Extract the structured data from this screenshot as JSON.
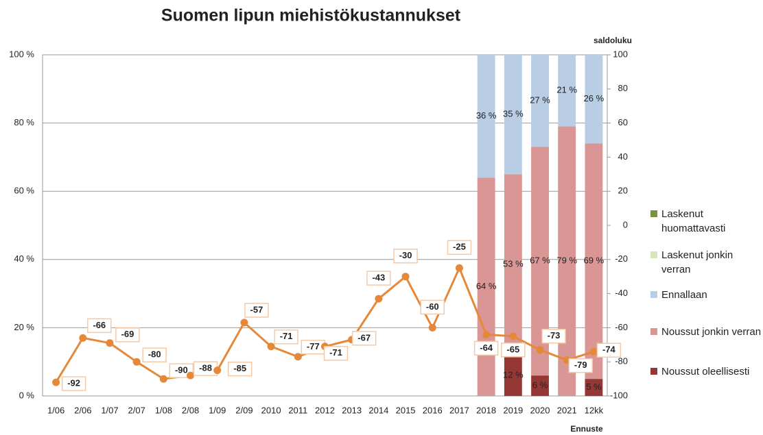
{
  "chart_data": {
    "type": "bar",
    "title": "Suomen lipun miehistökustannukset",
    "y2_label": "saldoluku",
    "annotation": "Ennuste",
    "categories": [
      "1/06",
      "2/06",
      "1/07",
      "2/07",
      "1/08",
      "2/08",
      "1/09",
      "2/09",
      "2010",
      "2011",
      "2012",
      "2013",
      "2014",
      "2015",
      "2016",
      "2017",
      "2018",
      "2019",
      "2020",
      "2021",
      "12kk"
    ],
    "stacked": true,
    "series": [
      {
        "name": "Noussut oleellisesti",
        "color": "#953735",
        "values": [
          null,
          null,
          null,
          null,
          null,
          null,
          null,
          null,
          null,
          null,
          null,
          null,
          null,
          null,
          null,
          null,
          null,
          12,
          6,
          null,
          5
        ],
        "value_labels": [
          null,
          null,
          null,
          null,
          null,
          null,
          null,
          null,
          null,
          null,
          null,
          null,
          null,
          null,
          null,
          null,
          null,
          "12 %",
          "6 %",
          null,
          "5 %"
        ]
      },
      {
        "name": "Noussut jonkin verran",
        "color": "#d99694",
        "values": [
          null,
          null,
          null,
          null,
          null,
          null,
          null,
          null,
          null,
          null,
          null,
          null,
          null,
          null,
          null,
          null,
          64,
          53,
          67,
          79,
          69
        ],
        "value_labels": [
          null,
          null,
          null,
          null,
          null,
          null,
          null,
          null,
          null,
          null,
          null,
          null,
          null,
          null,
          null,
          null,
          "64 %",
          "53 %",
          "67 %",
          "79 %",
          "69 %"
        ]
      },
      {
        "name": "Ennallaan",
        "color": "#b9cde5",
        "values": [
          null,
          null,
          null,
          null,
          null,
          null,
          null,
          null,
          null,
          null,
          null,
          null,
          null,
          null,
          null,
          null,
          36,
          35,
          27,
          21,
          26
        ],
        "value_labels": [
          null,
          null,
          null,
          null,
          null,
          null,
          null,
          null,
          null,
          null,
          null,
          null,
          null,
          null,
          null,
          null,
          "36 %",
          "35 %",
          "27 %",
          "21 %",
          "26 %"
        ]
      },
      {
        "name": "Laskenut jonkin verran",
        "color": "#d7e4bd",
        "values": [
          null,
          null,
          null,
          null,
          null,
          null,
          null,
          null,
          null,
          null,
          null,
          null,
          null,
          null,
          null,
          null,
          null,
          null,
          null,
          null,
          null
        ]
      },
      {
        "name": "Laskenut huomattavasti",
        "color": "#77933c",
        "values": [
          null,
          null,
          null,
          null,
          null,
          null,
          null,
          null,
          null,
          null,
          null,
          null,
          null,
          null,
          null,
          null,
          null,
          null,
          null,
          null,
          null
        ]
      },
      {
        "name": "saldoluku",
        "type": "line",
        "axis": "y2",
        "color": "#e5883a",
        "values": [
          -92,
          -66,
          -69,
          -80,
          -90,
          -88,
          -85,
          -57,
          -71,
          -77,
          -71,
          -67,
          -43,
          -30,
          -60,
          -25,
          -64,
          -65,
          -73,
          -79,
          -74
        ]
      }
    ],
    "ylim": [
      0,
      100
    ],
    "yticks": [
      {
        "value": 0,
        "label": "0 %"
      },
      {
        "value": 20,
        "label": "20 %"
      },
      {
        "value": 40,
        "label": "40 %"
      },
      {
        "value": 60,
        "label": "60 %"
      },
      {
        "value": 80,
        "label": "80 %"
      },
      {
        "value": 100,
        "label": "100 %"
      }
    ],
    "y2lim": [
      -100,
      100
    ],
    "y2ticks": [
      -100,
      -80,
      -60,
      -40,
      -20,
      0,
      20,
      40,
      60,
      80,
      100
    ],
    "grid": true
  }
}
